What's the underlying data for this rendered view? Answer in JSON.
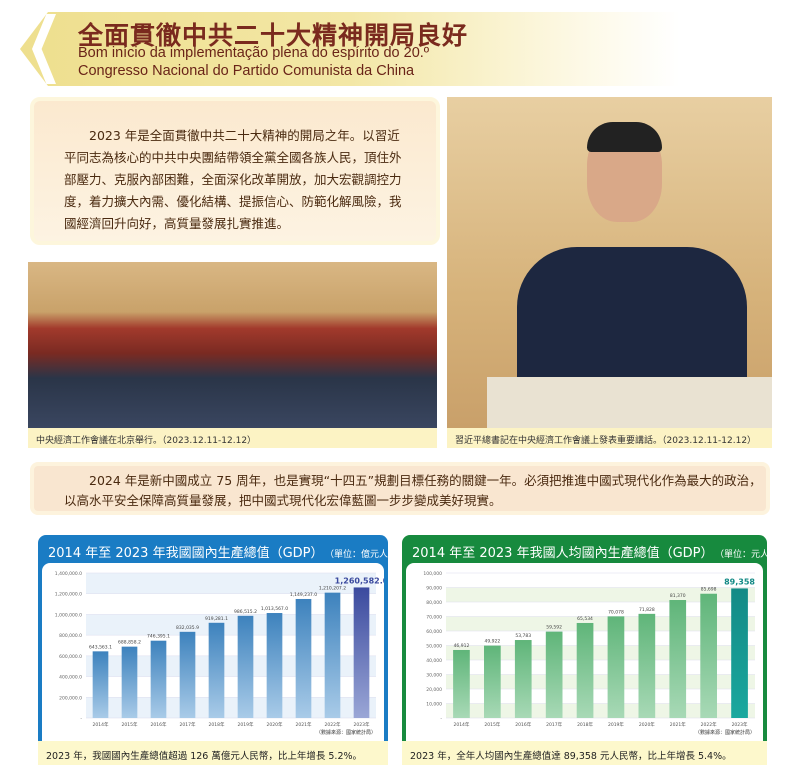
{
  "header": {
    "title": "全面貫徹中共二十大精神開局良好",
    "subtitle_line1": "Bom início da implementação plena do espírito do 20.º",
    "subtitle_line2": "Congresso Nacional do Partido Comunista da China"
  },
  "intro": "2023 年是全面貫徹中共二十大精神的開局之年。以習近平同志為核心的中共中央團結帶領全黨全國各族人民，頂住外部壓力、克服內部困難，全面深化改革開放，加大宏觀調控力度，着力擴大內需、優化結構、提振信心、防範化解風險，我國經濟回升向好，高質量發展扎實推進。",
  "photos": [
    {
      "caption": "中央經濟工作會議在北京舉行。（2023.12.11-12.12）"
    },
    {
      "caption": "習近平總書記在中央經濟工作會議上發表重要講話。（2023.12.11-12.12）"
    }
  ],
  "paragraph2_line1": "2024 年是新中國成立 75 周年，也是實現“十四五”規劃目標任務的關鍵一年。必須把推進中國式現代化作為最大的政治，",
  "paragraph2_line2": "以高水平安全保障高質量發展，把中國式現代化宏偉藍圖一步步變成美好現實。",
  "chart_data": [
    {
      "type": "bar",
      "title": "2014 年至 2023 年我國國內生產總值（GDP）",
      "unit": "（單位：億元人民幣）",
      "categories": [
        "2014年",
        "2015年",
        "2016年",
        "2017年",
        "2018年",
        "2019年",
        "2020年",
        "2021年",
        "2022年",
        "2023年"
      ],
      "values": [
        643563.1,
        688858.2,
        746395.1,
        832035.9,
        919281.1,
        986515.2,
        1013567.0,
        1149237.0,
        1210207.2,
        1260582.0
      ],
      "value_labels": [
        "643,563.1",
        "688,858.2",
        "746,395.1",
        "832,035.9",
        "919,281.1",
        "986,515.2",
        "1,013,567.0",
        "1,149,237.0",
        "1,210,207.2",
        "1,260,582.0"
      ],
      "yticks": [
        "-",
        "200,000.0",
        "400,000.0",
        "600,000.0",
        "800,000.0",
        "1,000,000.0",
        "1,200,000.0",
        "1,400,000.0"
      ],
      "ylim": [
        0,
        1400000
      ],
      "grid": true,
      "source": "（數據來源：國家統計局）",
      "note": "2023 年，我國國內生產總值超過 126 萬億元人民幣，比上年增長 5.2%。",
      "colors": {
        "header": "#1a7cc4",
        "bar": "#3d82bd",
        "highlight": "#3b4a9e"
      }
    },
    {
      "type": "bar",
      "title": "2014 年至 2023 年我國人均國內生產總值（GDP）",
      "unit": "（單位：元人民幣）",
      "categories": [
        "2014年",
        "2015年",
        "2016年",
        "2017年",
        "2018年",
        "2019年",
        "2020年",
        "2021年",
        "2022年",
        "2023年"
      ],
      "values": [
        46912,
        49922,
        53783,
        59592,
        65534,
        70078,
        71828,
        81370,
        85698,
        89358
      ],
      "value_labels": [
        "46,912",
        "49,922",
        "53,783",
        "59,592",
        "65,534",
        "70,078",
        "71,828",
        "81,370",
        "85,698",
        "89,358"
      ],
      "yticks": [
        "-",
        "10,000",
        "20,000",
        "30,000",
        "40,000",
        "50,000",
        "60,000",
        "70,000",
        "80,000",
        "90,000",
        "100,000"
      ],
      "ylim": [
        0,
        100000
      ],
      "grid": true,
      "source": "（數據來源：國家統計局）",
      "note": "2023 年，全年人均國內生產總值達 89,358 元人民幣，比上年增長 5.4%。",
      "colors": {
        "header": "#178a3e",
        "bar": "#5fb579",
        "highlight": "#138a86"
      }
    }
  ]
}
